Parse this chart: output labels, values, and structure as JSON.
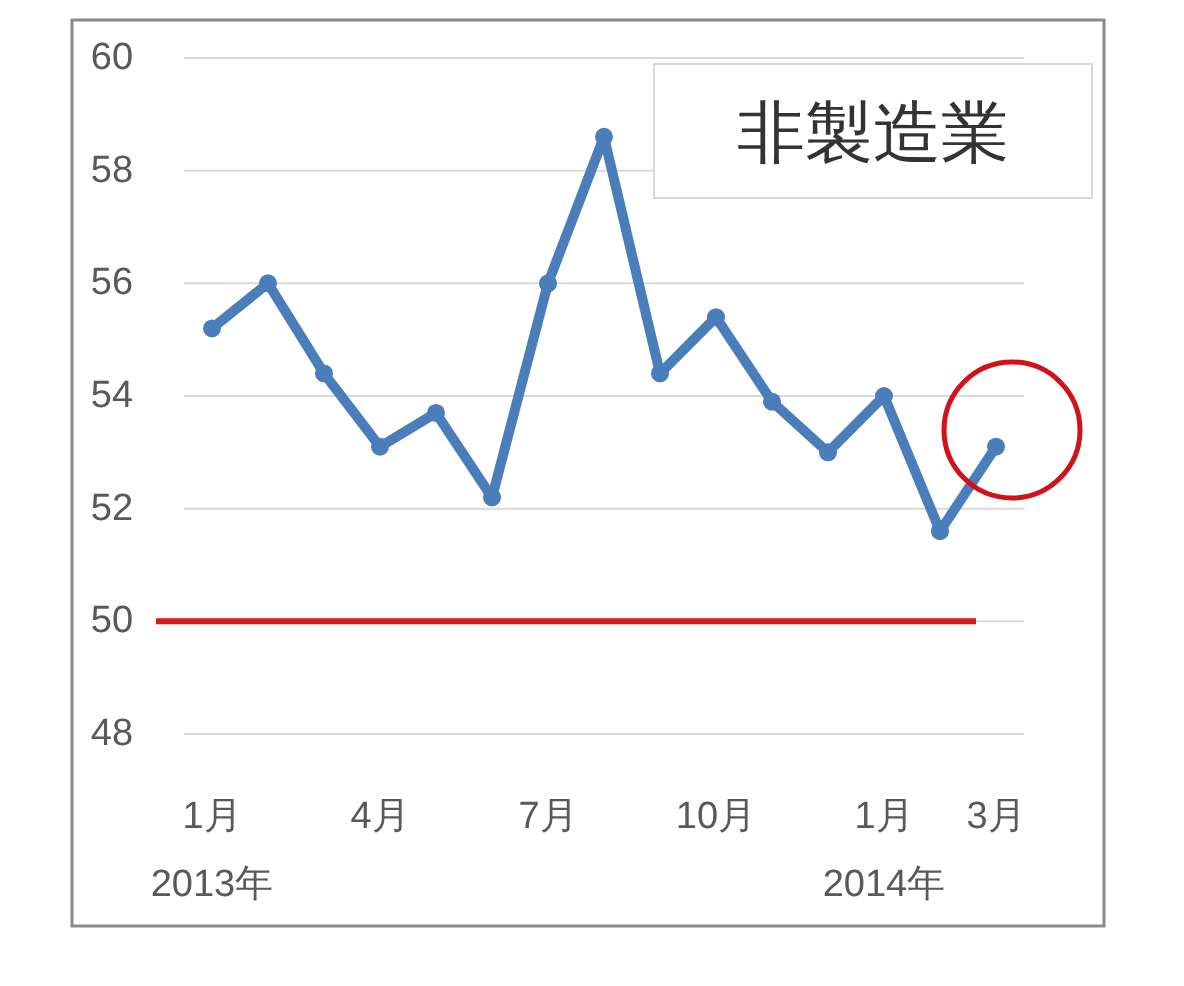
{
  "chart_data": {
    "type": "line",
    "title": "非製造業",
    "categories": [
      "1月\n2013年",
      null,
      null,
      "4月",
      null,
      null,
      "7月",
      null,
      null,
      "10月",
      null,
      null,
      "1月\n2014年",
      null,
      "3月"
    ],
    "series": [
      {
        "color": "#4a7ebb",
        "values": [
          55.2,
          56.0,
          54.4,
          53.1,
          53.7,
          52.2,
          56.0,
          58.6,
          54.4,
          55.4,
          53.9,
          53.0,
          54.0,
          51.6,
          53.1
        ]
      }
    ],
    "ylim": [
      48,
      60
    ],
    "yticks": [
      48,
      50,
      52,
      54,
      56,
      58,
      60
    ],
    "grid": "y",
    "marker": "circle",
    "ref_lines": [
      {
        "axis": "y",
        "value": 50,
        "color": "#d7191c"
      }
    ]
  }
}
